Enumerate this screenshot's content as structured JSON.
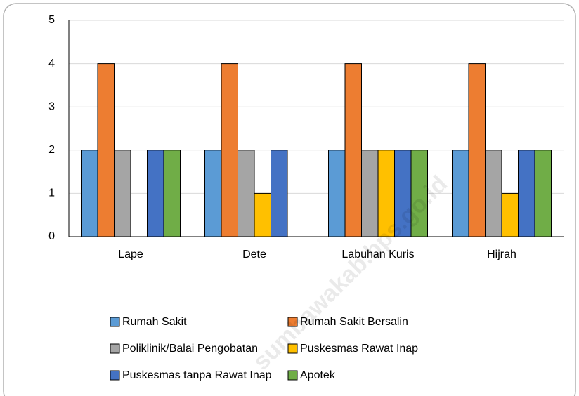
{
  "chart_data": {
    "type": "bar",
    "categories": [
      "Lape",
      "Dete",
      "Labuhan Kuris",
      "Hijrah"
    ],
    "series": [
      {
        "name": "Rumah Sakit",
        "color": "#5b9bd5",
        "values": [
          2,
          2,
          2,
          2
        ]
      },
      {
        "name": "Rumah Sakit Bersalin",
        "color": "#ed7d31",
        "values": [
          4,
          4,
          4,
          4
        ]
      },
      {
        "name": "Poliklinik/Balai Pengobatan",
        "color": "#a5a5a5",
        "values": [
          2,
          2,
          2,
          2
        ]
      },
      {
        "name": "Puskesmas Rawat Inap",
        "color": "#ffc000",
        "values": [
          0,
          1,
          2,
          1
        ]
      },
      {
        "name": "Puskesmas tanpa Rawat Inap",
        "color": "#4472c4",
        "values": [
          2,
          2,
          2,
          2
        ]
      },
      {
        "name": "Apotek",
        "color": "#70ad47",
        "values": [
          2,
          0,
          2,
          2
        ]
      }
    ],
    "ylim": [
      0,
      5
    ],
    "yticks": [
      0,
      1,
      2,
      3,
      4,
      5
    ],
    "grid": true,
    "legend": "bottom",
    "watermark": "sumbawakab.bps.go.id"
  }
}
